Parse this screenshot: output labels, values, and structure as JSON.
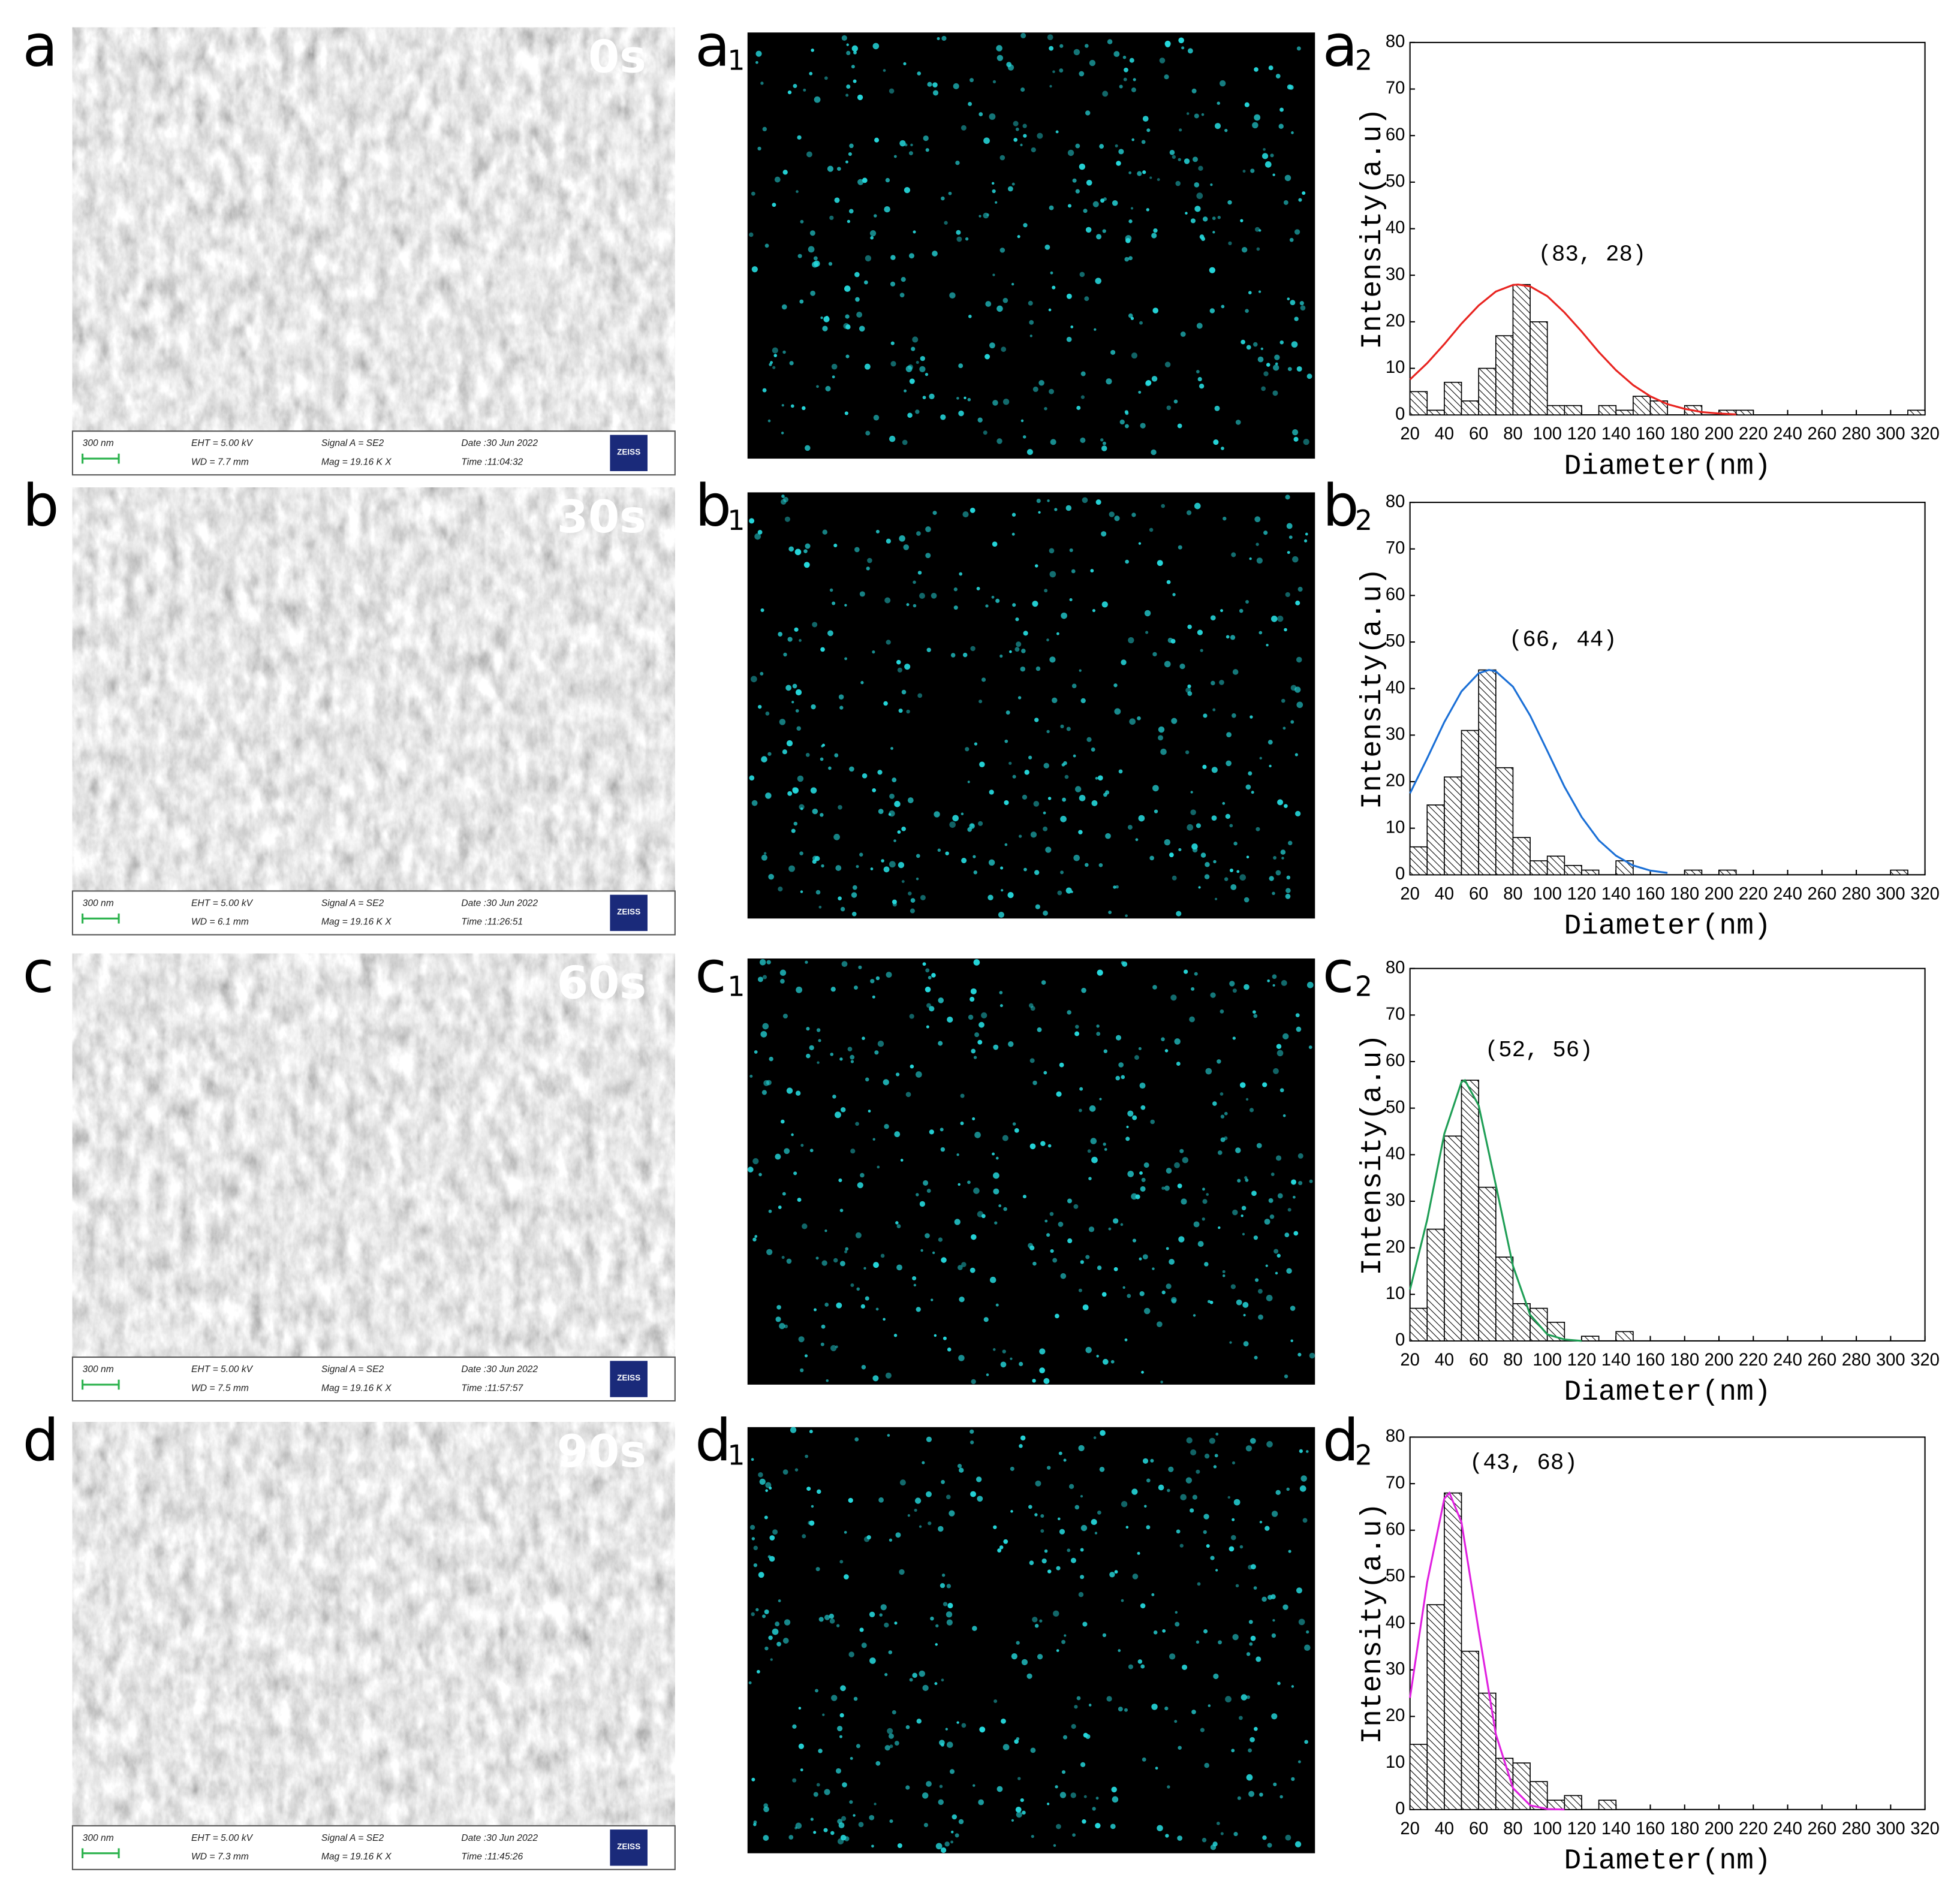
{
  "panels": [
    {
      "letter": "a",
      "time": "0s",
      "map_letter": "a",
      "map_sub": "1",
      "sem_info": {
        "scale": "300 nm",
        "eht": "EHT =  5.00 kV",
        "wd": "WD =  7.7 mm",
        "signal": "Signal A = SE2",
        "mag": "Mag =  19.16 K X",
        "date": "Date :30 Jun 2022",
        "time": "Time :11:04:32",
        "logo": "ZEISS"
      }
    },
    {
      "letter": "b",
      "time": "30s",
      "map_letter": "b",
      "map_sub": "1",
      "sem_info": {
        "scale": "300 nm",
        "eht": "EHT =  5.00 kV",
        "wd": "WD =  6.1 mm",
        "signal": "Signal A = SE2",
        "mag": "Mag =  19.16 K X",
        "date": "Date :30 Jun 2022",
        "time": "Time :11:26:51",
        "logo": "ZEISS"
      }
    },
    {
      "letter": "c",
      "time": "60s",
      "map_letter": "c",
      "map_sub": "1",
      "sem_info": {
        "scale": "300 nm",
        "eht": "EHT =  5.00 kV",
        "wd": "WD =  7.5 mm",
        "signal": "Signal A = SE2",
        "mag": "Mag =  19.16 K X",
        "date": "Date :30 Jun 2022",
        "time": "Time :11:57:57",
        "logo": "ZEISS"
      }
    },
    {
      "letter": "d",
      "time": "90s",
      "map_letter": "d",
      "map_sub": "1",
      "sem_info": {
        "scale": "300 nm",
        "eht": "EHT =  5.00 kV",
        "wd": "WD =  7.3 mm",
        "signal": "Signal A = SE2",
        "mag": "Mag =  19.16 K X",
        "date": "Date :30 Jun 2022",
        "time": "Time :11:45:26",
        "logo": "ZEISS"
      }
    }
  ],
  "chart_data": [
    {
      "type": "histogram",
      "label": "a",
      "sub": "2",
      "xlabel": "Diameter(nm)",
      "ylabel": "Intensity(a.u)",
      "annotation": "(83, 28)",
      "bins": [
        20,
        30,
        40,
        50,
        60,
        70,
        80,
        90,
        100,
        110,
        120,
        130,
        140,
        150,
        160,
        170,
        180,
        190,
        200,
        210,
        220,
        230,
        240,
        250,
        260,
        270,
        280,
        290,
        300,
        310,
        320
      ],
      "values": [
        5,
        1,
        7,
        3,
        10,
        17,
        28,
        20,
        2,
        2,
        0,
        2,
        1,
        4,
        3,
        0,
        2,
        0,
        1,
        1,
        0,
        0,
        0,
        0,
        0,
        0,
        0,
        0,
        0,
        1
      ],
      "fit": {
        "color": "#e8231f",
        "x": [
          20,
          30,
          40,
          50,
          60,
          70,
          80,
          83,
          90,
          100,
          110,
          120,
          130,
          140,
          150,
          160,
          170,
          180,
          190,
          200,
          210
        ],
        "values": [
          7.6,
          11.1,
          15.2,
          19.6,
          23.5,
          26.5,
          27.9,
          28,
          27.6,
          25.5,
          22.0,
          17.9,
          13.5,
          9.6,
          6.4,
          4.0,
          2.3,
          1.3,
          0.6,
          0.3,
          0.1
        ]
      },
      "xlim": [
        20,
        320
      ],
      "ylim": [
        0,
        80
      ],
      "xticks": [
        20,
        40,
        60,
        80,
        100,
        120,
        140,
        160,
        180,
        200,
        220,
        240,
        260,
        280,
        300,
        320
      ],
      "yticks": [
        0,
        10,
        20,
        30,
        40,
        50,
        60,
        70,
        80
      ]
    },
    {
      "type": "histogram",
      "label": "b",
      "sub": "2",
      "xlabel": "Diameter(nm)",
      "ylabel": "Intensity(a.u)",
      "annotation": "(66, 44)",
      "bins": [
        20,
        30,
        40,
        50,
        60,
        70,
        80,
        90,
        100,
        110,
        120,
        130,
        140,
        150,
        160,
        170,
        180,
        190,
        200,
        210,
        220,
        230,
        240,
        250,
        260,
        270,
        280,
        290,
        300,
        310,
        320
      ],
      "values": [
        6,
        15,
        21,
        31,
        44,
        23,
        8,
        3,
        4,
        2,
        1,
        0,
        3,
        0,
        0,
        0,
        1,
        0,
        1,
        0,
        0,
        0,
        0,
        0,
        0,
        0,
        0,
        0,
        1,
        0
      ],
      "fit": {
        "color": "#1a6fd6",
        "x": [
          20,
          30,
          40,
          50,
          60,
          66,
          70,
          80,
          90,
          100,
          110,
          120,
          130,
          140,
          150,
          160,
          170
        ],
        "values": [
          17.5,
          25.0,
          32.8,
          39.4,
          43.3,
          44,
          43.7,
          40.4,
          34.2,
          26.6,
          18.9,
          12.4,
          7.4,
          4.1,
          2.0,
          0.9,
          0.4
        ]
      },
      "xlim": [
        20,
        320
      ],
      "ylim": [
        0,
        80
      ],
      "xticks": [
        20,
        40,
        60,
        80,
        100,
        120,
        140,
        160,
        180,
        200,
        220,
        240,
        260,
        280,
        300,
        320
      ],
      "yticks": [
        0,
        10,
        20,
        30,
        40,
        50,
        60,
        70,
        80
      ]
    },
    {
      "type": "histogram",
      "label": "c",
      "sub": "2",
      "xlabel": "Diameter(nm)",
      "ylabel": "Intensity(a.u)",
      "annotation": "(52, 56)",
      "bins": [
        20,
        30,
        40,
        50,
        60,
        70,
        80,
        90,
        100,
        110,
        120,
        130,
        140,
        150,
        160,
        170,
        180,
        190,
        200,
        210,
        220,
        230,
        240,
        250,
        260,
        270,
        280,
        290,
        300,
        310,
        320
      ],
      "values": [
        7,
        24,
        44,
        56,
        33,
        18,
        8,
        7,
        4,
        0,
        1,
        0,
        2,
        0,
        0,
        0,
        0,
        0,
        0,
        0,
        0,
        0,
        0,
        0,
        0,
        0,
        0,
        0,
        0,
        0
      ],
      "fit": {
        "color": "#1e9e55",
        "x": [
          20,
          30,
          40,
          50,
          52,
          60,
          70,
          80,
          90,
          100,
          110,
          120
        ],
        "values": [
          11.0,
          26.0,
          44.5,
          55.6,
          56,
          50.6,
          33.5,
          16.1,
          5.6,
          1.4,
          0.3,
          0.0
        ]
      },
      "xlim": [
        20,
        320
      ],
      "ylim": [
        0,
        80
      ],
      "xticks": [
        20,
        40,
        60,
        80,
        100,
        120,
        140,
        160,
        180,
        200,
        220,
        240,
        260,
        280,
        300,
        320
      ],
      "yticks": [
        0,
        10,
        20,
        30,
        40,
        50,
        60,
        70,
        80
      ]
    },
    {
      "type": "histogram",
      "label": "d",
      "sub": "2",
      "xlabel": "Diameter(nm)",
      "ylabel": "Intensity(a.u)",
      "annotation": "(43, 68)",
      "bins": [
        20,
        30,
        40,
        50,
        60,
        70,
        80,
        90,
        100,
        110,
        120,
        130,
        140,
        150,
        160,
        170,
        180,
        190,
        200,
        210,
        220,
        230,
        240,
        250,
        260,
        270,
        280,
        290,
        300,
        310,
        320
      ],
      "values": [
        14,
        44,
        68,
        34,
        25,
        11,
        10,
        6,
        2,
        3,
        0,
        2,
        0,
        0,
        0,
        0,
        0,
        0,
        0,
        0,
        0,
        0,
        0,
        0,
        0,
        0,
        0,
        0,
        0,
        0
      ],
      "fit": {
        "color": "#e020e0",
        "x": [
          20,
          30,
          40,
          43,
          50,
          60,
          70,
          80,
          90,
          100,
          110
        ],
        "values": [
          24.0,
          48.8,
          66.8,
          68,
          61.7,
          38.5,
          16.2,
          4.6,
          0.9,
          0.1,
          0.0
        ]
      },
      "xlim": [
        20,
        320
      ],
      "ylim": [
        0,
        80
      ],
      "xticks": [
        20,
        40,
        60,
        80,
        100,
        120,
        140,
        160,
        180,
        200,
        220,
        240,
        260,
        280,
        300,
        320
      ],
      "yticks": [
        0,
        10,
        20,
        30,
        40,
        50,
        60,
        70,
        80
      ]
    }
  ]
}
